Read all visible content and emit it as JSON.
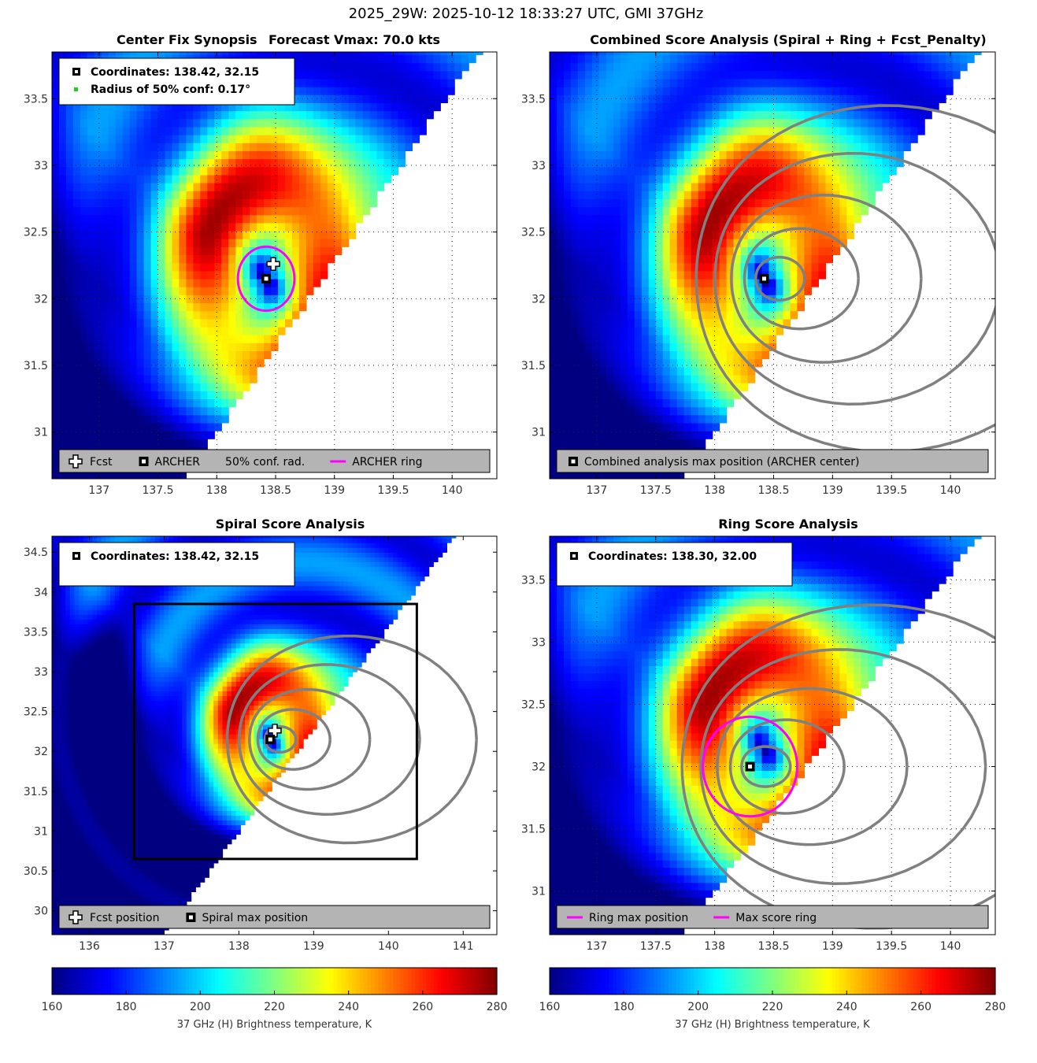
{
  "figure": {
    "suptitle": "2025_29W: 2025-10-12 18:33:27 UTC, GMI 37GHz"
  },
  "colors": {
    "ring": "#ff00ff",
    "contour": "#808080",
    "legend_bg": "#b4b4b4",
    "conf_dot": "#22cc22"
  },
  "chart_data": [
    {
      "id": "center-fix",
      "type": "heatmap",
      "title": "Center Fix Synopsis",
      "subtitle": "Forecast Vmax: 70.0 kts",
      "xlim": [
        136.6,
        140.38
      ],
      "ylim": [
        30.65,
        33.85
      ],
      "xticks": [
        137,
        137.5,
        138,
        138.5,
        139,
        139.5,
        140
      ],
      "yticks": [
        31,
        31.5,
        32,
        32.5,
        33,
        33.5
      ],
      "grid": true,
      "info": [
        "Coordinates: 138.42, 32.15",
        "Radius of 50% conf: 0.17°"
      ],
      "markers": {
        "archer": [
          138.42,
          32.15
        ],
        "fcst": [
          138.48,
          32.26
        ]
      },
      "ring": {
        "center": [
          138.42,
          32.15
        ],
        "radius_deg": 0.24
      },
      "legend": [
        "Fcst",
        "ARCHER",
        "50% conf. rad.",
        "ARCHER ring"
      ]
    },
    {
      "id": "combined",
      "type": "heatmap",
      "title": "Combined Score Analysis (Spiral + Ring + Fcst_Penalty)",
      "xlim": [
        136.6,
        140.38
      ],
      "ylim": [
        30.65,
        33.85
      ],
      "xticks": [
        137,
        137.5,
        138,
        138.5,
        139,
        139.5,
        140
      ],
      "yticks": [
        31,
        31.5,
        32,
        32.5,
        33,
        33.5
      ],
      "grid": true,
      "markers": {
        "archer": [
          138.42,
          32.15
        ]
      },
      "legend": [
        "Combined analysis max position (ARCHER center)"
      ]
    },
    {
      "id": "spiral",
      "type": "heatmap",
      "title": "Spiral Score Analysis",
      "xlim": [
        135.5,
        141.45
      ],
      "ylim": [
        29.7,
        34.7
      ],
      "xticks": [
        136,
        137,
        138,
        139,
        140,
        141
      ],
      "yticks": [
        30,
        30.5,
        31,
        31.5,
        32,
        32.5,
        33,
        33.5,
        34,
        34.5
      ],
      "grid": false,
      "info": [
        "Coordinates: 138.42, 32.15"
      ],
      "markers": {
        "archer": [
          138.42,
          32.15
        ],
        "fcst": [
          138.48,
          32.26
        ]
      },
      "box": [
        [
          136.6,
          30.65
        ],
        [
          140.38,
          33.85
        ]
      ],
      "legend": [
        "Fcst position",
        "Spiral max position"
      ]
    },
    {
      "id": "ring",
      "type": "heatmap",
      "title": "Ring Score Analysis",
      "xlim": [
        136.6,
        140.38
      ],
      "ylim": [
        30.65,
        33.85
      ],
      "xticks": [
        137,
        137.5,
        138,
        138.5,
        139,
        139.5,
        140
      ],
      "yticks": [
        31,
        31.5,
        32,
        32.5,
        33,
        33.5
      ],
      "grid": true,
      "info": [
        "Coordinates: 138.30, 32.00"
      ],
      "markers": {
        "archer": [
          138.3,
          32.0
        ]
      },
      "ring": {
        "center": [
          138.3,
          32.0
        ],
        "radius_deg": 0.4
      },
      "legend": [
        "Ring max position",
        "Max score ring"
      ]
    }
  ],
  "colorbar": {
    "range": [
      160,
      280
    ],
    "ticks": [
      160,
      180,
      200,
      220,
      240,
      260,
      280
    ],
    "label": "37 GHz (H) Brightness temperature, K"
  }
}
